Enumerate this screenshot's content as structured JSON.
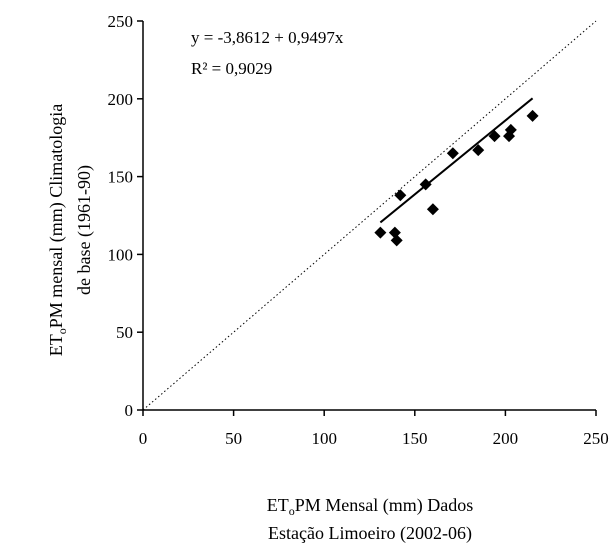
{
  "chart_data": {
    "type": "scatter",
    "xlabel": {
      "line1_prefix": "ET",
      "line1_sub": "o",
      "line1_suffix": "PM Mensal (mm) Dados",
      "line2": "Estação Limoeiro (2002-06)"
    },
    "ylabel": {
      "line1_prefix": "ET",
      "line1_sub": "o",
      "line1_suffix": "PM mensal (mm) Climatologia",
      "line2": "de base (1961-90)"
    },
    "xlim": [
      0,
      250
    ],
    "ylim": [
      0,
      250
    ],
    "x_ticks": [
      0,
      50,
      100,
      150,
      200,
      250
    ],
    "y_ticks": [
      0,
      50,
      100,
      150,
      200,
      250
    ],
    "x_tick_labels": [
      "0",
      "50",
      "100",
      "150",
      "200",
      "250"
    ],
    "y_tick_labels": [
      "0",
      "50",
      "100",
      "150",
      "200",
      "250"
    ],
    "grid": false,
    "points": [
      {
        "x": 131,
        "y": 114
      },
      {
        "x": 139,
        "y": 114
      },
      {
        "x": 140,
        "y": 109
      },
      {
        "x": 142,
        "y": 138
      },
      {
        "x": 156,
        "y": 145
      },
      {
        "x": 160,
        "y": 129
      },
      {
        "x": 171,
        "y": 165
      },
      {
        "x": 185,
        "y": 167
      },
      {
        "x": 194,
        "y": 176
      },
      {
        "x": 202,
        "y": 176
      },
      {
        "x": 203,
        "y": 180
      },
      {
        "x": 215,
        "y": 189
      }
    ],
    "regression": {
      "intercept": -3.8612,
      "slope": 0.9497,
      "x_range": [
        131,
        215
      ],
      "equation_text": "y = -3,8612 + 0,9497x",
      "r2_text": "R² = 0,9029"
    },
    "reference_line": {
      "style": "dotted",
      "slope": 1,
      "intercept": 0,
      "x_range": [
        0,
        250
      ]
    },
    "marker": "diamond",
    "colors": {
      "marker": "#000000",
      "line": "#000000",
      "axis": "#000000"
    }
  }
}
